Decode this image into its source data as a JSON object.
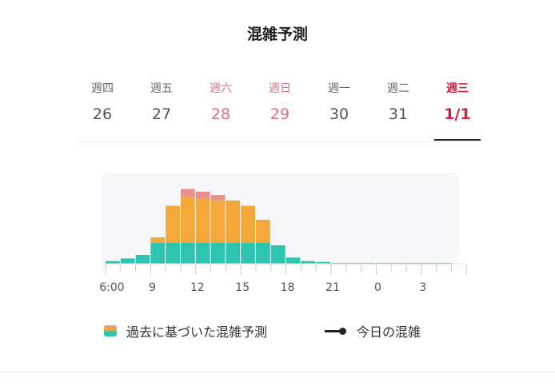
{
  "title": "混雑予測",
  "tabs": [
    {
      "weekday": "週四",
      "date": "26",
      "type": "normal"
    },
    {
      "weekday": "週五",
      "date": "27",
      "type": "normal"
    },
    {
      "weekday": "週六",
      "date": "28",
      "type": "weekend"
    },
    {
      "weekday": "週日",
      "date": "29",
      "type": "weekend"
    },
    {
      "weekday": "週一",
      "date": "30",
      "type": "normal"
    },
    {
      "weekday": "週二",
      "date": "31",
      "type": "normal"
    },
    {
      "weekday": "週三",
      "date": "1/1",
      "type": "active"
    }
  ],
  "legend": {
    "forecast_label": "過去に基づいた混雑予測",
    "today_label": "今日の混雑"
  },
  "colors": {
    "teal": "#2ec4b0",
    "orange": "#f4a83a",
    "salmon": "#e8908a",
    "chart_bg": "#f7f7fa",
    "active": "#d11f3e",
    "weekend": "#e07080"
  },
  "chart_data": {
    "type": "bar",
    "stacked": true,
    "x": [
      "6",
      "7",
      "8",
      "9",
      "10",
      "11",
      "12",
      "13",
      "14",
      "15",
      "16",
      "17",
      "18",
      "19",
      "20",
      "21",
      "22",
      "23",
      "0",
      "1",
      "2",
      "3",
      "4",
      "5"
    ],
    "tick_labels": [
      "6:00",
      "9",
      "12",
      "15",
      "18",
      "21",
      "0",
      "3"
    ],
    "series": [
      {
        "values": [
          3,
          6,
          10,
          24,
          24,
          24,
          24,
          24,
          24,
          24,
          24,
          21,
          7,
          3,
          2,
          1,
          1,
          1,
          1,
          1,
          1,
          1,
          1,
          0
        ]
      },
      {
        "values": [
          0,
          0,
          0,
          6,
          42,
          52,
          50,
          48,
          48,
          42,
          26,
          0,
          0,
          0,
          0,
          0,
          0,
          0,
          0,
          0,
          0,
          0,
          0,
          0
        ]
      },
      {
        "values": [
          0,
          0,
          0,
          0,
          0,
          9,
          8,
          6,
          0,
          0,
          0,
          0,
          0,
          0,
          0,
          0,
          0,
          0,
          0,
          0,
          0,
          0,
          0,
          0
        ]
      }
    ],
    "ylim": [
      0,
      100
    ],
    "grid": false
  }
}
